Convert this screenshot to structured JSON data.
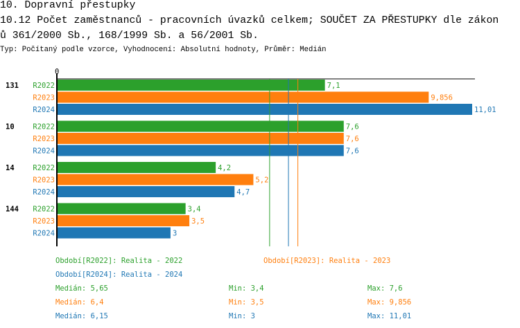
{
  "header": {
    "title_line1": "10. Dopravní přestupky",
    "title_line2": "10.12 Počet zaměstnanců - pracovních úvazků celkem; SOUČET ZA PŘESTUPKY dle zákon",
    "title_line3": "ů 361/2000 Sb., 168/1999 Sb. a 56/2001 Sb.",
    "subtitle": "Typ: Počítaný podle vzorce, Vyhodnocení: Absolutní hodnoty, Průměr: Medián"
  },
  "chart_data": {
    "type": "bar",
    "orientation": "horizontal",
    "x_tick_labels": [
      "0"
    ],
    "xlim": [
      0,
      11.01
    ],
    "categories": [
      "131",
      "10",
      "14",
      "144"
    ],
    "series": [
      {
        "name": "R2022",
        "color": "#2ca02c",
        "values": [
          7.1,
          7.6,
          4.2,
          3.4
        ],
        "labels": [
          "7,1",
          "7,6",
          "4,2",
          "3,4"
        ]
      },
      {
        "name": "R2023",
        "color": "#ff7f0e",
        "values": [
          9.856,
          7.6,
          5.2,
          3.5
        ],
        "labels": [
          "9,856",
          "7,6",
          "5,2",
          "3,5"
        ]
      },
      {
        "name": "R2024",
        "color": "#1f77b4",
        "values": [
          11.01,
          7.6,
          4.7,
          3
        ],
        "labels": [
          "11,01",
          "7,6",
          "4,7",
          "3"
        ]
      }
    ],
    "median_lines": [
      {
        "series": "R2022",
        "value": 5.65,
        "color": "#2ca02c"
      },
      {
        "series": "R2024",
        "value": 6.15,
        "color": "#1f77b4"
      },
      {
        "series": "R2023",
        "value": 6.4,
        "color": "#ff7f0e"
      }
    ],
    "legend": [
      {
        "text": "Období[R2022]: Realita - 2022",
        "color": "#2ca02c"
      },
      {
        "text": "Období[R2023]: Realita - 2023",
        "color": "#ff7f0e"
      },
      {
        "text": "Období[R2024]: Realita - 2024",
        "color": "#1f77b4"
      }
    ],
    "stats": [
      {
        "median": "Medián: 5,65",
        "min": "Min: 3,4",
        "max": "Max: 7,6",
        "color": "#2ca02c"
      },
      {
        "median": "Medián: 6,4",
        "min": "Min: 3,5",
        "max": "Max: 9,856",
        "color": "#ff7f0e"
      },
      {
        "median": "Medián: 6,15",
        "min": "Min: 3",
        "max": "Max: 11,01",
        "color": "#1f77b4"
      }
    ]
  }
}
